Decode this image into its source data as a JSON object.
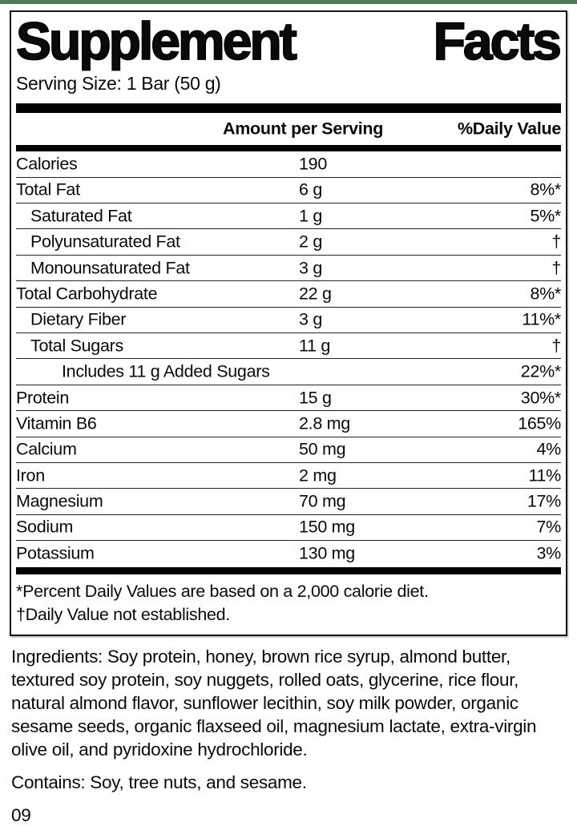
{
  "accent_color": "#4d7b55",
  "label": {
    "title_word1": "Supplement",
    "title_word2": "Facts",
    "serving_size": "Serving Size: 1 Bar (50 g)",
    "col_amount": "Amount per Serving",
    "col_dv": "%Daily Value",
    "rows": [
      {
        "name": "Calories",
        "amount": "190",
        "dv": "",
        "indent": 0
      },
      {
        "name": "Total Fat",
        "amount": "6 g",
        "dv": "8%*",
        "indent": 0
      },
      {
        "name": "Saturated Fat",
        "amount": "1 g",
        "dv": "5%*",
        "indent": 1
      },
      {
        "name": "Polyunsaturated Fat",
        "amount": "2 g",
        "dv": "†",
        "indent": 1
      },
      {
        "name": "Monounsaturated Fat",
        "amount": "3 g",
        "dv": "†",
        "indent": 1
      },
      {
        "name": "Total Carbohydrate",
        "amount": "22 g",
        "dv": "8%*",
        "indent": 0
      },
      {
        "name": "Dietary Fiber",
        "amount": "3 g",
        "dv": "11%*",
        "indent": 1
      },
      {
        "name": "Total Sugars",
        "amount": "11 g",
        "dv": "†",
        "indent": 1
      },
      {
        "name": "Includes 11 g Added Sugars",
        "amount": "",
        "dv": "22%*",
        "indent": 2
      },
      {
        "name": "Protein",
        "amount": "15 g",
        "dv": "30%*",
        "indent": 0
      },
      {
        "name": "Vitamin B6",
        "amount": "2.8 mg",
        "dv": "165%",
        "indent": 0
      },
      {
        "name": "Calcium",
        "amount": "50 mg",
        "dv": "4%",
        "indent": 0
      },
      {
        "name": "Iron",
        "amount": "2 mg",
        "dv": "11%",
        "indent": 0
      },
      {
        "name": "Magnesium",
        "amount": "70 mg",
        "dv": "17%",
        "indent": 0
      },
      {
        "name": "Sodium",
        "amount": "150 mg",
        "dv": "7%",
        "indent": 0
      },
      {
        "name": "Potassium",
        "amount": "130 mg",
        "dv": "3%",
        "indent": 0
      }
    ],
    "footnotes": [
      "*Percent Daily Values are based on a 2,000 calorie diet.",
      "†Daily Value not established."
    ]
  },
  "ingredients": "Ingredients: Soy protein, honey, brown rice syrup, almond butter, textured soy protein, soy nuggets, rolled oats, glycerine, rice flour, natural almond flavor, sunflower lecithin, soy milk powder, organic sesame seeds, organic flaxseed oil, magnesium lactate, extra-virgin olive oil, and pyridoxine hydrochloride.",
  "contains": "Contains: Soy, tree nuts, and sesame.",
  "code": "09"
}
